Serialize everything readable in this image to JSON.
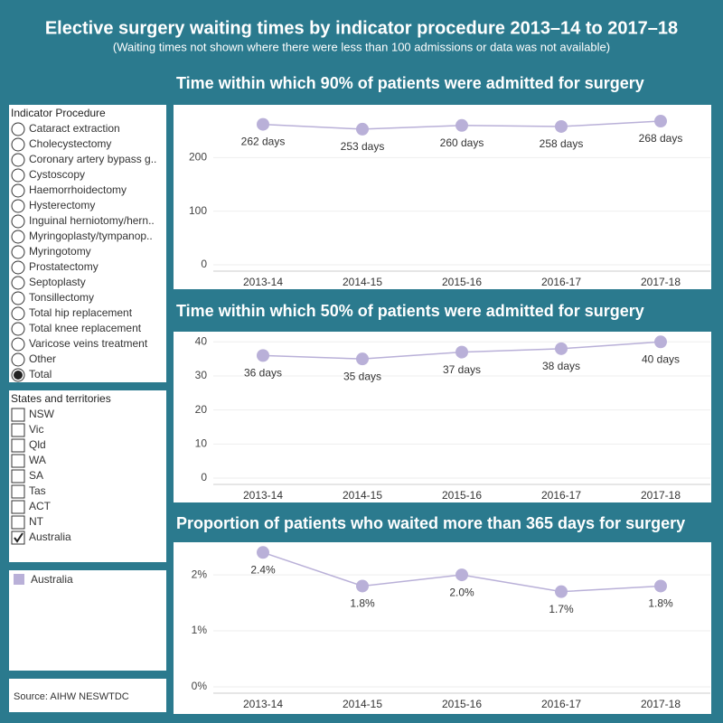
{
  "header": {
    "title": "Elective surgery waiting times by indicator procedure 2013–14 to 2017–18",
    "subtitle": "(Waiting times not shown where there were less than 100 admissions or data was not available)"
  },
  "chart_data": [
    {
      "type": "line",
      "title": "Time within which 90% of patients were admitted for surgery",
      "categories": [
        "2013-14",
        "2014-15",
        "2015-16",
        "2016-17",
        "2017-18"
      ],
      "series": [
        {
          "name": "Australia",
          "color": "#b9b0d8",
          "values": [
            262,
            253,
            260,
            258,
            268
          ],
          "value_labels": [
            "262 days",
            "253 days",
            "260 days",
            "258 days",
            "268 days"
          ]
        }
      ],
      "ylim": [
        0,
        295
      ],
      "yticks": [
        0,
        100,
        200
      ],
      "grid": true
    },
    {
      "type": "line",
      "title": "Time within which 50% of patients were admitted for surgery",
      "categories": [
        "2013-14",
        "2014-15",
        "2015-16",
        "2016-17",
        "2017-18"
      ],
      "series": [
        {
          "name": "Australia",
          "color": "#b9b0d8",
          "values": [
            36,
            35,
            37,
            38,
            40
          ],
          "value_labels": [
            "36 days",
            "35 days",
            "37 days",
            "38 days",
            "40 days"
          ]
        }
      ],
      "ylim": [
        0,
        43
      ],
      "yticks": [
        0,
        10,
        20,
        30,
        40
      ],
      "grid": true
    },
    {
      "type": "line",
      "title": "Proportion of patients who waited more than 365 days for surgery",
      "categories": [
        "2013-14",
        "2014-15",
        "2015-16",
        "2016-17",
        "2017-18"
      ],
      "series": [
        {
          "name": "Australia",
          "color": "#b9b0d8",
          "values": [
            2.4,
            1.8,
            2.0,
            1.7,
            1.8
          ],
          "value_labels": [
            "2.4%",
            "1.8%",
            "2.0%",
            "1.7%",
            "1.8%"
          ]
        }
      ],
      "ylim": [
        0,
        2.55
      ],
      "yticks": [
        {
          "value": 0,
          "label": "0%"
        },
        {
          "value": 1,
          "label": "1%"
        },
        {
          "value": 2,
          "label": "2%"
        }
      ],
      "grid": true
    }
  ],
  "filters": {
    "procedure": {
      "title": "Indicator Procedure",
      "options": [
        {
          "label": "Cataract extraction",
          "selected": false
        },
        {
          "label": "Cholecystectomy",
          "selected": false
        },
        {
          "label": "Coronary artery bypass g..",
          "selected": false
        },
        {
          "label": "Cystoscopy",
          "selected": false
        },
        {
          "label": "Haemorrhoidectomy",
          "selected": false
        },
        {
          "label": "Hysterectomy",
          "selected": false
        },
        {
          "label": "Inguinal herniotomy/hern..",
          "selected": false
        },
        {
          "label": "Myringoplasty/tympanop..",
          "selected": false
        },
        {
          "label": "Myringotomy",
          "selected": false
        },
        {
          "label": "Prostatectomy",
          "selected": false
        },
        {
          "label": "Septoplasty",
          "selected": false
        },
        {
          "label": "Tonsillectomy",
          "selected": false
        },
        {
          "label": "Total hip replacement",
          "selected": false
        },
        {
          "label": "Total knee replacement",
          "selected": false
        },
        {
          "label": "Varicose veins treatment",
          "selected": false
        },
        {
          "label": "Other",
          "selected": false
        },
        {
          "label": "Total",
          "selected": true
        }
      ]
    },
    "states": {
      "title": "States and territories",
      "options": [
        {
          "label": "NSW",
          "selected": false
        },
        {
          "label": "Vic",
          "selected": false
        },
        {
          "label": "Qld",
          "selected": false
        },
        {
          "label": "WA",
          "selected": false
        },
        {
          "label": "SA",
          "selected": false
        },
        {
          "label": "Tas",
          "selected": false
        },
        {
          "label": "ACT",
          "selected": false
        },
        {
          "label": "NT",
          "selected": false
        },
        {
          "label": "Australia",
          "selected": true
        }
      ]
    }
  },
  "source": "Source: AIHW NESWTDC"
}
